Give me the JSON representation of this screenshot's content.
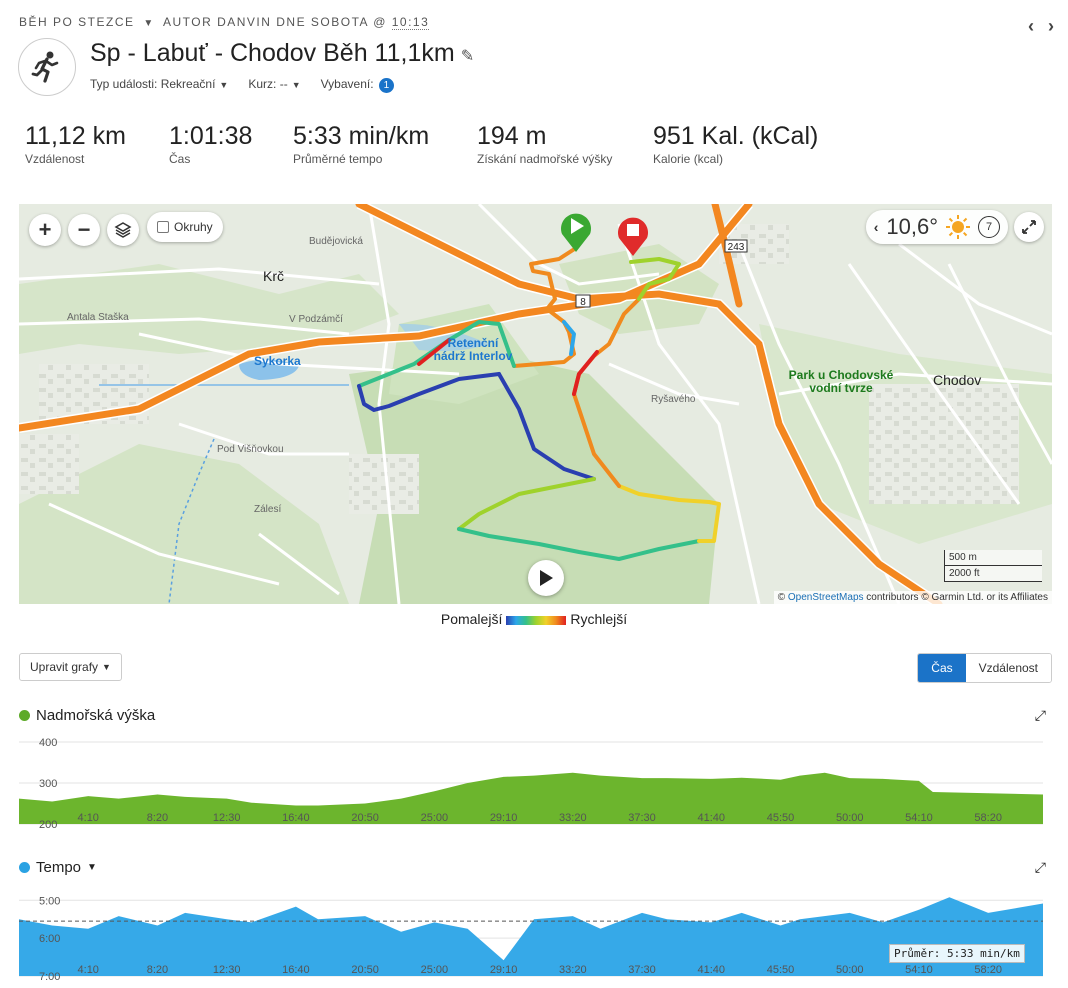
{
  "breadcrumb": {
    "activity_type": "BĚH PO STEZCE",
    "author_text": "AUTOR DANVIN DNE SOBOTA @",
    "time": "10:13"
  },
  "nav": {
    "prev": "‹",
    "next": "›"
  },
  "title": "Sp - Labuť - Chodov Běh 11,1km",
  "meta": {
    "event_type_label": "Typ události:",
    "event_type_value": "Rekreační",
    "course_label": "Kurz:",
    "course_value": "--",
    "gear_label": "Vybavení:",
    "gear_count": "1"
  },
  "stats": [
    {
      "value": "11,12 km",
      "label": "Vzdálenost"
    },
    {
      "value": "1:01:38",
      "label": "Čas"
    },
    {
      "value": "5:33 min/km",
      "label": "Průměrné tempo"
    },
    {
      "value": "194 m",
      "label": "Získání nadmořské výšky"
    },
    {
      "value": "951 Kal. (kCal)",
      "label": "Kalorie (kcal)"
    }
  ],
  "map": {
    "zoom_in": "+",
    "zoom_out": "−",
    "laps_label": "Okruhy",
    "temperature": "10,6°",
    "wind_value": "7",
    "labels": {
      "krc": "Krč",
      "sykorka": "Sykorka",
      "reservoir": "Retenční nádrž Interlov",
      "park": "Park u Chodovské vodní tvrze",
      "chodov": "Chodov",
      "v_podzame": "V Podzámčí",
      "antala_stasky": "Antala Staška",
      "budejovicka": "Budějovická",
      "pod_visnovkou": "Pod Višňovkou",
      "zales": "Zálesí",
      "ryzavena": "Ryšavého",
      "road_243": "243",
      "road_8": "8"
    },
    "scale_m": "500 m",
    "scale_ft": "2000 ft",
    "attribution_link": "OpenStreetMaps",
    "attribution_rest": "contributors © Garmin Ltd. or its Affiliates"
  },
  "legend": {
    "slower": "Pomalejší",
    "faster": "Rychlejší"
  },
  "controls": {
    "edit_graphs": "Upravit grafy",
    "time": "Čas",
    "distance": "Vzdálenost"
  },
  "colors": {
    "elevation": "#6cb52d",
    "pace": "#36a9e8",
    "accent": "#1b73c8",
    "route_start": "#3aa832",
    "route_end": "#e02b2b"
  },
  "icons": {
    "activity": "running-icon",
    "edit": "pencil-icon",
    "layers": "layers-icon",
    "weather": "sun-icon",
    "expand": "expand-icon",
    "play": "play-icon"
  },
  "charts": {
    "elevation": {
      "title": "Nadmořská výška",
      "y_ticks": [
        "400",
        "300",
        "200"
      ],
      "x_ticks": [
        "4:10",
        "8:20",
        "12:30",
        "16:40",
        "20:50",
        "25:00",
        "29:10",
        "33:20",
        "37:30",
        "41:40",
        "45:50",
        "50:00",
        "54:10",
        "58:20"
      ]
    },
    "pace": {
      "title": "Tempo",
      "y_ticks": [
        "5:00",
        "6:00",
        "7:00"
      ],
      "x_ticks": [
        "4:10",
        "8:20",
        "12:30",
        "16:40",
        "20:50",
        "25:00",
        "29:10",
        "33:20",
        "37:30",
        "41:40",
        "45:50",
        "50:00",
        "54:10",
        "58:20"
      ],
      "average_label": "Průměr: 5:33 min/km"
    }
  },
  "chart_data": [
    {
      "type": "area",
      "title": "Nadmořská výška",
      "xlabel": "",
      "ylabel": "",
      "ylim": [
        200,
        400
      ],
      "x": [
        "0:00",
        "2:00",
        "4:10",
        "6:00",
        "8:20",
        "10:00",
        "12:30",
        "14:00",
        "16:40",
        "18:00",
        "20:50",
        "23:00",
        "25:00",
        "27:00",
        "29:10",
        "31:00",
        "33:20",
        "35:00",
        "37:30",
        "39:00",
        "41:40",
        "43:30",
        "45:50",
        "47:00",
        "48:30",
        "50:00",
        "52:00",
        "54:10",
        "55:00",
        "58:20",
        "61:38"
      ],
      "values": [
        262,
        255,
        268,
        262,
        272,
        266,
        262,
        252,
        245,
        245,
        250,
        262,
        280,
        300,
        315,
        318,
        325,
        318,
        312,
        312,
        310,
        313,
        308,
        318,
        325,
        312,
        310,
        305,
        278,
        275,
        272
      ]
    },
    {
      "type": "area",
      "title": "Tempo",
      "xlabel": "",
      "ylabel": "",
      "ylim": [
        "7:00",
        "5:00"
      ],
      "x": [
        "0:00",
        "2:00",
        "4:10",
        "6:00",
        "8:20",
        "10:00",
        "12:30",
        "14:00",
        "16:40",
        "18:00",
        "20:50",
        "23:00",
        "25:00",
        "27:00",
        "29:10",
        "31:00",
        "33:20",
        "35:00",
        "37:30",
        "39:00",
        "41:40",
        "43:30",
        "45:50",
        "47:00",
        "50:00",
        "52:00",
        "54:10",
        "56:00",
        "58:20",
        "61:38"
      ],
      "values": [
        "5:30",
        "5:40",
        "5:45",
        "5:25",
        "5:40",
        "5:20",
        "5:30",
        "5:35",
        "5:10",
        "5:30",
        "5:25",
        "5:50",
        "5:35",
        "5:45",
        "6:35",
        "5:30",
        "5:25",
        "5:45",
        "5:20",
        "5:30",
        "5:35",
        "5:20",
        "5:40",
        "5:30",
        "5:20",
        "5:35",
        "5:15",
        "4:55",
        "5:20",
        "5:05"
      ],
      "average": "5:33"
    }
  ]
}
